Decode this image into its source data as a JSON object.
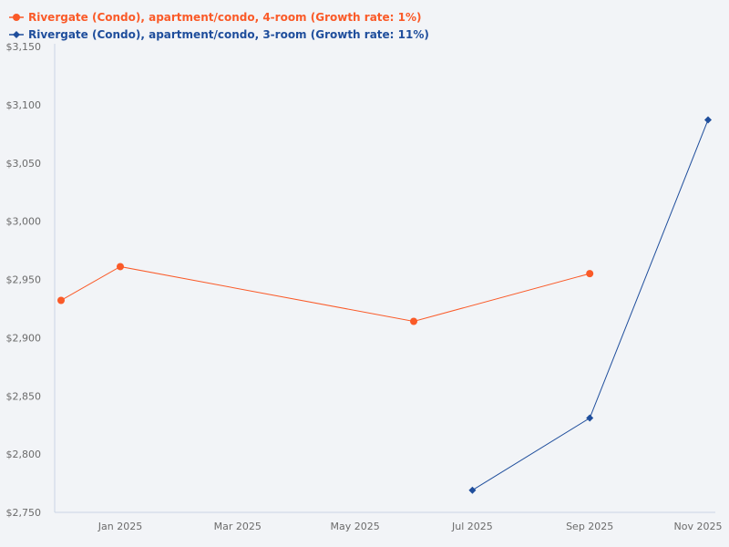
{
  "chart_data": {
    "type": "line",
    "title": "",
    "xlabel": "",
    "ylabel": "",
    "ylim": [
      2750,
      3150
    ],
    "yticks": [
      "$2,750",
      "$2,800",
      "$2,850",
      "$2,900",
      "$2,950",
      "$3,000",
      "$3,050",
      "$3,100",
      "$3,150"
    ],
    "xticks": [
      "Jan 2025",
      "Mar 2025",
      "May 2025",
      "Jul 2025",
      "Sep 2025",
      "Nov 2025"
    ],
    "grid": false,
    "legend_position": "top-left",
    "series": [
      {
        "name": "Rivergate (Condo), apartment/condo, 4-room (Growth rate: 1%)",
        "color": "#fa5a28",
        "marker": "circle",
        "x": [
          "Dec 2024",
          "Jan 2025",
          "Jun 2025",
          "Sep 2025"
        ],
        "values": [
          2932,
          2961,
          2914,
          2955
        ]
      },
      {
        "name": "Rivergate (Condo), apartment/condo, 3-room (Growth rate: 11%)",
        "color": "#1f4e9c",
        "marker": "diamond",
        "x": [
          "Jul 2025",
          "Sep 2025",
          "Nov 2025"
        ],
        "values": [
          2769,
          2831,
          3087
        ]
      }
    ]
  },
  "legend": {
    "items": [
      {
        "label": "Rivergate (Condo), apartment/condo, 4-room (Growth rate: 1%)",
        "color": "#fa5a28"
      },
      {
        "label": "Rivergate (Condo), apartment/condo, 3-room (Growth rate: 11%)",
        "color": "#1f4e9c"
      }
    ]
  }
}
